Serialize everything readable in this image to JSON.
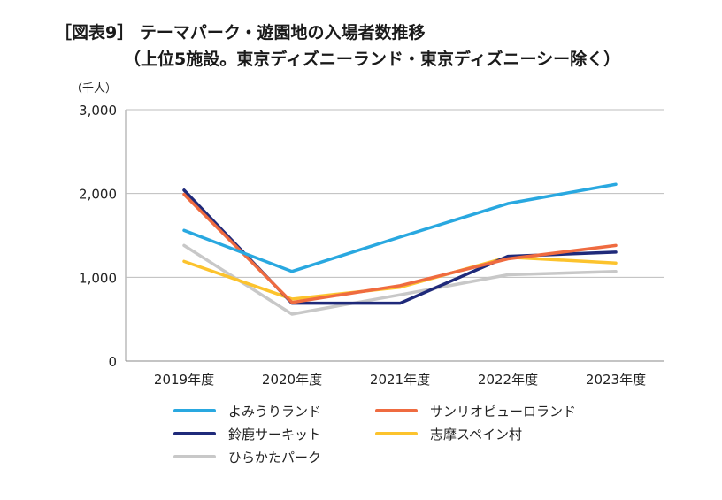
{
  "title": {
    "line1": "［図表9］ テーマパーク・遊園地の入場者数推移",
    "line2": "（上位5施設。東京ディズニーランド・東京ディズニーシー除く）"
  },
  "chart_data": {
    "type": "line",
    "unit_label": "（千人）",
    "categories": [
      "2019年度",
      "2020年度",
      "2021年度",
      "2022年度",
      "2023年度"
    ],
    "ylim": [
      0,
      3000
    ],
    "yticks": [
      0,
      1000,
      2000,
      3000
    ],
    "ytick_labels": [
      "0",
      "1,000",
      "2,000",
      "3,000"
    ],
    "grid": true,
    "legend_position": "bottom",
    "series": [
      {
        "name": "よみうりランド",
        "color": "#29a8e0",
        "values": [
          1560,
          1070,
          1480,
          1880,
          2110
        ]
      },
      {
        "name": "サンリオピューロランド",
        "color": "#ef6b40",
        "values": [
          1990,
          700,
          900,
          1220,
          1380
        ]
      },
      {
        "name": "鈴鹿サーキット",
        "color": "#1f2a7a",
        "values": [
          2040,
          690,
          690,
          1250,
          1300
        ]
      },
      {
        "name": "志摩スペイン村",
        "color": "#fcc32d",
        "values": [
          1190,
          740,
          880,
          1240,
          1170
        ]
      },
      {
        "name": "ひらかたパーク",
        "color": "#c8c8c8",
        "values": [
          1380,
          560,
          790,
          1030,
          1070
        ]
      }
    ]
  }
}
